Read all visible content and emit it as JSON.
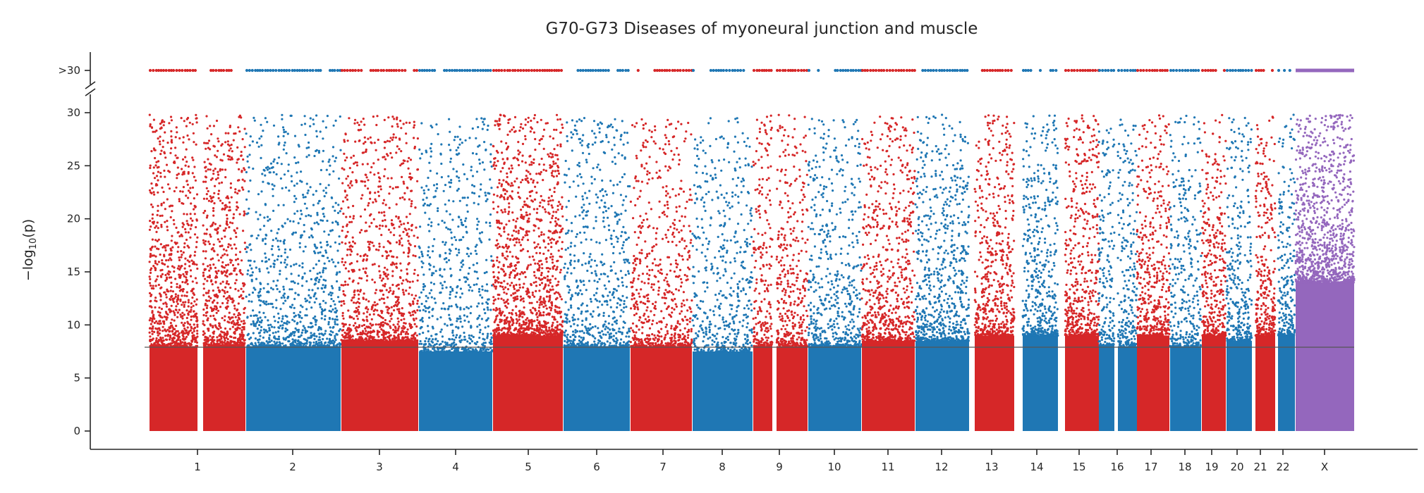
{
  "chart_data": {
    "type": "scatter",
    "subtype": "manhattan",
    "title": "G70-G73 Diseases of myoneural junction and muscle",
    "ylabel_main": "−log",
    "ylabel_sub": "10",
    "ylabel_tail": "(p)",
    "xlabel": "",
    "ylim": [
      0,
      30
    ],
    "yticks": [
      0,
      5,
      10,
      15,
      20,
      25,
      30
    ],
    "ytick_labels": [
      "0",
      "5",
      "10",
      "15",
      "20",
      "25",
      "30"
    ],
    "overflow_label": ">30",
    "significance_line": 7.9,
    "grid": false,
    "legend": "none",
    "colors": {
      "red": "#d62728",
      "blue": "#1f77b4",
      "purple": "#9467bd",
      "line": "#555555",
      "axis": "#262626"
    },
    "chromosomes": [
      {
        "label": "1",
        "color": "red",
        "dense_max": 8,
        "sparse_max": 29.8,
        "density": 1.0,
        "overflow": "dense"
      },
      {
        "label": "2",
        "color": "blue",
        "dense_max": 8,
        "sparse_max": 29.8,
        "density": 0.55,
        "overflow": "dense"
      },
      {
        "label": "3",
        "color": "red",
        "dense_max": 8.5,
        "sparse_max": 29.8,
        "density": 0.7,
        "overflow": "dense"
      },
      {
        "label": "4",
        "color": "blue",
        "dense_max": 7.5,
        "sparse_max": 29.5,
        "density": 0.5,
        "overflow": "dense"
      },
      {
        "label": "5",
        "color": "red",
        "dense_max": 9,
        "sparse_max": 29.8,
        "density": 0.95,
        "overflow": "dense"
      },
      {
        "label": "6",
        "color": "blue",
        "dense_max": 8,
        "sparse_max": 29.5,
        "density": 0.55,
        "overflow": "dense"
      },
      {
        "label": "7",
        "color": "red",
        "dense_max": 8,
        "sparse_max": 29.5,
        "density": 0.6,
        "overflow": "dense"
      },
      {
        "label": "8",
        "color": "blue",
        "dense_max": 7.5,
        "sparse_max": 29.5,
        "density": 0.5,
        "overflow": "dense"
      },
      {
        "label": "9",
        "color": "red",
        "dense_max": 8,
        "sparse_max": 29.8,
        "density": 0.7,
        "overflow": "dense"
      },
      {
        "label": "10",
        "color": "blue",
        "dense_max": 8,
        "sparse_max": 29.5,
        "density": 0.6,
        "overflow": "dense"
      },
      {
        "label": "11",
        "color": "red",
        "dense_max": 8.5,
        "sparse_max": 29.8,
        "density": 0.75,
        "overflow": "dense"
      },
      {
        "label": "12",
        "color": "blue",
        "dense_max": 8.5,
        "sparse_max": 29.8,
        "density": 0.75,
        "overflow": "dense"
      },
      {
        "label": "13",
        "color": "red",
        "dense_max": 9,
        "sparse_max": 29.8,
        "density": 0.8,
        "overflow": "dense"
      },
      {
        "label": "14",
        "color": "blue",
        "dense_max": 9,
        "sparse_max": 29.8,
        "density": 0.8,
        "overflow": "dense"
      },
      {
        "label": "15",
        "color": "red",
        "dense_max": 9,
        "sparse_max": 29.8,
        "density": 0.85,
        "overflow": "dense"
      },
      {
        "label": "16",
        "color": "blue",
        "dense_max": 8,
        "sparse_max": 29.5,
        "density": 0.7,
        "overflow": "dense"
      },
      {
        "label": "17",
        "color": "red",
        "dense_max": 9,
        "sparse_max": 29.8,
        "density": 0.8,
        "overflow": "dense"
      },
      {
        "label": "18",
        "color": "blue",
        "dense_max": 8,
        "sparse_max": 29.8,
        "density": 0.6,
        "overflow": "dense"
      },
      {
        "label": "19",
        "color": "red",
        "dense_max": 9,
        "sparse_max": 29.8,
        "density": 0.85,
        "overflow": "dense"
      },
      {
        "label": "20",
        "color": "blue",
        "dense_max": 8.5,
        "sparse_max": 29.5,
        "density": 0.75,
        "overflow": "dense"
      },
      {
        "label": "21",
        "color": "red",
        "dense_max": 9,
        "sparse_max": 29.8,
        "density": 0.9,
        "overflow": "dense"
      },
      {
        "label": "22",
        "color": "blue",
        "dense_max": 9,
        "sparse_max": 29.8,
        "density": 0.8,
        "overflow": "sparse"
      },
      {
        "label": "X",
        "color": "purple",
        "dense_max": 14,
        "sparse_max": 29.8,
        "density": 1.0,
        "overflow": "solid"
      }
    ]
  }
}
